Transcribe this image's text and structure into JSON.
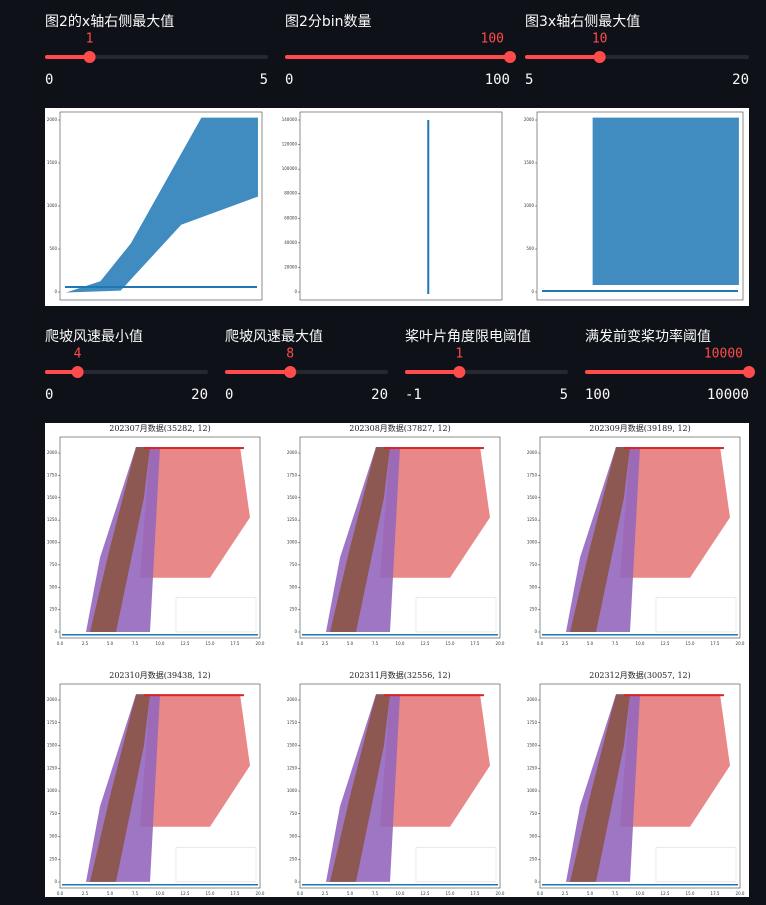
{
  "controls_top": [
    {
      "label": "图2的x轴右侧最大值",
      "value": 1,
      "min": 0,
      "max": 5
    },
    {
      "label": "图2分bin数量",
      "value": 100,
      "min": 0,
      "max": 100
    },
    {
      "label": "图3x轴右侧最大值",
      "value": 10,
      "min": 5,
      "max": 20
    }
  ],
  "figure_top": {
    "panels": [
      {
        "yticks": [
          0,
          500,
          1000,
          1500,
          2000
        ]
      },
      {
        "yticks": [
          0,
          20000,
          40000,
          60000,
          80000,
          100000,
          120000,
          140000
        ]
      },
      {
        "yticks": [
          0,
          500,
          1000,
          1500,
          2000
        ]
      }
    ]
  },
  "controls_bottom": [
    {
      "label": "爬坡风速最小值",
      "value": 4,
      "min": 0,
      "max": 20
    },
    {
      "label": "爬坡风速最大值",
      "value": 8,
      "min": 0,
      "max": 20
    },
    {
      "label": "桨叶片角度限电阈值",
      "value": 1,
      "min": -1,
      "max": 5
    },
    {
      "label": "满发前变桨功率阈值",
      "value": 10000,
      "min": 100,
      "max": 10000
    }
  ],
  "figure_bottom": {
    "xticks": [
      "0.0",
      "2.5",
      "5.0",
      "7.5",
      "10.0",
      "12.5",
      "15.0",
      "17.5",
      "20.0"
    ],
    "yticks": [
      0,
      250,
      500,
      750,
      1000,
      1250,
      1500,
      1750,
      2000
    ],
    "panels": [
      {
        "title": "202307月数据(35282, 12)"
      },
      {
        "title": "202308月数据(37827, 12)"
      },
      {
        "title": "202309月数据(39189, 12)"
      },
      {
        "title": "202310月数据(39438, 12)"
      },
      {
        "title": "202311月数据(32556, 12)"
      },
      {
        "title": "202312月数据(30057, 12)"
      }
    ]
  }
}
